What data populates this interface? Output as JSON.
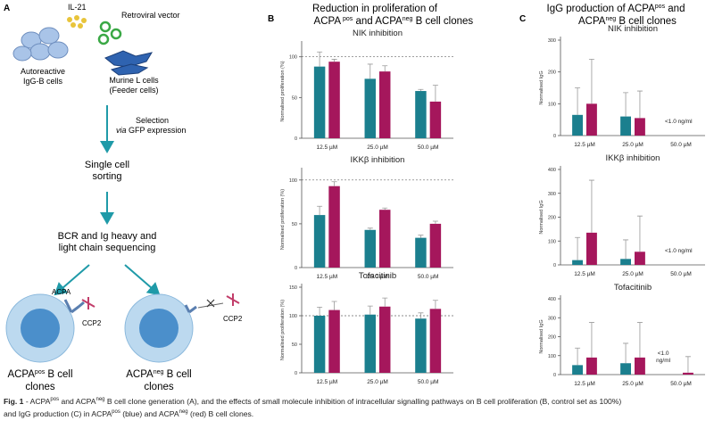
{
  "panel_a": {
    "label": "A",
    "il21": "IL-21",
    "vector": "Retroviral vector",
    "autoreactive": [
      "Autoreactive",
      "IgG-B cells"
    ],
    "feeder": [
      "Murine L cells",
      "(Feeder cells)"
    ],
    "selection": [
      "Selection",
      "via",
      " GFP expression"
    ],
    "sorting": [
      "Single cell",
      "sorting"
    ],
    "sequencing": [
      "BCR and Ig heavy and",
      "light chain sequencing"
    ],
    "acpa": "ACPA",
    "ccp2": [
      "CCP2",
      "CCP2"
    ],
    "clone_pos": [
      "ACPA",
      "pos",
      " B cell",
      "clones"
    ],
    "clone_neg": [
      "ACPA",
      "neg",
      " B cell",
      "clones"
    ]
  },
  "panel_b": {
    "label": "B",
    "title": [
      "Reduction in proliferation of",
      "ACPA",
      "pos",
      " and ACPA",
      "neg",
      " B cell clones"
    ]
  },
  "panel_c": {
    "label": "C",
    "title": [
      "IgG production of ACPA",
      "pos",
      " and",
      "ACPA",
      "neg",
      " B cell clones"
    ]
  },
  "chart_data": [
    {
      "type": "bar",
      "title": "NIK inhibition",
      "ylabel": "Normalised proliferation (%)",
      "categories": [
        "12.5 µM",
        "25.0 µM",
        "50.0 µM"
      ],
      "ylim": [
        0,
        115
      ],
      "yticks": [
        0,
        50,
        100
      ],
      "reference_line": 100,
      "series": [
        {
          "color": "#1b7f8e",
          "values": [
            88,
            73,
            58
          ],
          "errors": [
            18,
            18,
            2
          ]
        },
        {
          "color": "#a5175c",
          "values": [
            94,
            82,
            45
          ],
          "errors": [
            3,
            7,
            20
          ]
        }
      ]
    },
    {
      "type": "bar",
      "title": "IKKβ inhibition",
      "ylabel": "Normalised proliferation (%)",
      "categories": [
        "12.5 µM",
        "25.0 µM",
        "50.0 µM"
      ],
      "ylim": [
        0,
        110
      ],
      "yticks": [
        0,
        50,
        100
      ],
      "reference_line": 100,
      "series": [
        {
          "color": "#1b7f8e",
          "values": [
            60,
            43,
            34
          ],
          "errors": [
            10,
            2,
            3
          ]
        },
        {
          "color": "#a5175c",
          "values": [
            93,
            66,
            50
          ],
          "errors": [
            5,
            2,
            3
          ]
        }
      ]
    },
    {
      "type": "bar",
      "title": "Tofacitinib",
      "ylabel": "Normalised proliferation (%)",
      "categories": [
        "12.5 µM",
        "25.0 µM",
        "50.0 µM"
      ],
      "ylim": [
        0,
        150
      ],
      "yticks": [
        0,
        50,
        100,
        150
      ],
      "reference_line": 100,
      "series": [
        {
          "color": "#1b7f8e",
          "values": [
            100,
            102,
            95
          ],
          "errors": [
            15,
            15,
            10
          ]
        },
        {
          "color": "#a5175c",
          "values": [
            110,
            116,
            112
          ],
          "errors": [
            15,
            15,
            15
          ]
        }
      ]
    },
    {
      "type": "bar",
      "title": "NIK inhibition",
      "ylabel": "Normalised IgG",
      "categories": [
        "12.5 µM",
        "25.0 µM",
        "50.0 µM"
      ],
      "ylim": [
        0,
        300
      ],
      "yticks": [
        0,
        100,
        200,
        300
      ],
      "annotation": [
        "<1.0 ng/ml"
      ],
      "series": [
        {
          "color": "#1b7f8e",
          "values": [
            65,
            60,
            null
          ],
          "errors": [
            85,
            75,
            null
          ]
        },
        {
          "color": "#a5175c",
          "values": [
            100,
            55,
            null
          ],
          "errors": [
            140,
            85,
            null
          ]
        }
      ]
    },
    {
      "type": "bar",
      "title": "IKKβ inhibition",
      "ylabel": "Normalised IgG",
      "categories": [
        "12.5 µM",
        "25.0 µM",
        "50.0 µM"
      ],
      "ylim": [
        0,
        400
      ],
      "yticks": [
        0,
        100,
        200,
        300,
        400
      ],
      "annotation": [
        "<1.0 ng/ml"
      ],
      "series": [
        {
          "color": "#1b7f8e",
          "values": [
            20,
            25,
            null
          ],
          "errors": [
            95,
            80,
            null
          ]
        },
        {
          "color": "#a5175c",
          "values": [
            135,
            55,
            null
          ],
          "errors": [
            220,
            150,
            null
          ]
        }
      ]
    },
    {
      "type": "bar",
      "title": "Tofacitinib",
      "ylabel": "Normalised IgG",
      "categories": [
        "12.5 µM",
        "25.0 µM",
        "50.0 µM"
      ],
      "ylim": [
        0,
        400
      ],
      "yticks": [
        0,
        100,
        200,
        300,
        400
      ],
      "annotation": [
        "<1.0",
        "ng/ml"
      ],
      "series": [
        {
          "color": "#1b7f8e",
          "values": [
            50,
            60,
            null
          ],
          "errors": [
            90,
            105,
            null
          ]
        },
        {
          "color": "#a5175c",
          "values": [
            90,
            90,
            10
          ],
          "errors": [
            185,
            185,
            85
          ]
        }
      ]
    }
  ],
  "caption": {
    "line1": [
      "Fig. 1",
      " - ACPA",
      "pos",
      " and ACPA",
      "neg",
      " B cell clone generation (A), and the effects of small molecule inhibition of intracellular signalling pathways on B cell proliferation (B, control set as 100%)"
    ],
    "line2": [
      "and IgG production  (C) in ACPA",
      "pos",
      " (blue) and ACPA",
      "neg",
      " (red) B cell clones."
    ]
  }
}
